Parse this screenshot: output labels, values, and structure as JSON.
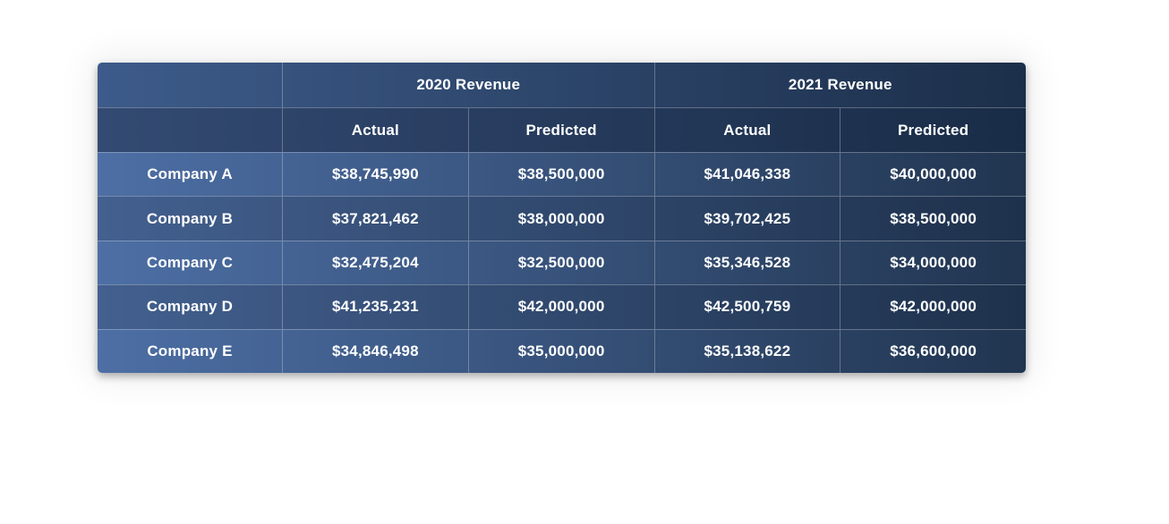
{
  "chart_data": {
    "type": "table",
    "column_groups": [
      {
        "label": "2020 Revenue",
        "span": 2
      },
      {
        "label": "2021 Revenue",
        "span": 2
      }
    ],
    "sub_headers": [
      "Actual",
      "Predicted",
      "Actual",
      "Predicted"
    ],
    "corner_label": "",
    "rows": [
      {
        "label": "Company A",
        "values": [
          "$38,745,990",
          "$38,500,000",
          "$41,046,338",
          "$40,000,000"
        ]
      },
      {
        "label": "Company B",
        "values": [
          "$37,821,462",
          "$38,000,000",
          "$39,702,425",
          "$38,500,000"
        ]
      },
      {
        "label": "Company C",
        "values": [
          "$32,475,204",
          "$32,500,000",
          "$35,346,528",
          "$34,000,000"
        ]
      },
      {
        "label": "Company D",
        "values": [
          "$41,235,231",
          "$42,000,000",
          "$42,500,759",
          "$42,000,000"
        ]
      },
      {
        "label": "Company E",
        "values": [
          "$34,846,498",
          "$35,000,000",
          "$35,138,622",
          "$36,600,000"
        ]
      }
    ],
    "layout": {
      "grid": "on",
      "header_rows": 2,
      "data_rows": 5
    }
  },
  "colors": {
    "page_background": "#ffffff",
    "group_header_gradient": [
      "#3d5b8a",
      "#1c2f4a"
    ],
    "sub_header_gradient": [
      "#334a72",
      "#192c47"
    ],
    "row_odd_gradient": [
      "#4d6fa5",
      "#213550"
    ],
    "row_even_gradient": [
      "#43608f",
      "#1e314c"
    ],
    "separator": "rgba(255,255,255,0.28)",
    "text": "#ffffff"
  }
}
